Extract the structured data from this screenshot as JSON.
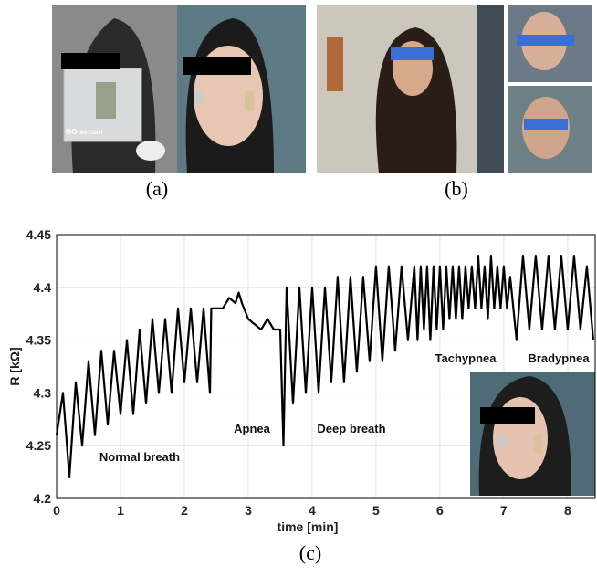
{
  "figure": {
    "panel_labels": [
      "(a)",
      "(b)",
      "(c)"
    ],
    "sensor_label": "GO-sensor"
  },
  "chart_data": {
    "type": "line",
    "xlabel": "time [min]",
    "ylabel": "R [kΩ]",
    "color": "#000000",
    "grid": true,
    "xlim": [
      0,
      8.43
    ],
    "ylim": [
      4.2,
      4.45
    ],
    "xticks": [
      0,
      1,
      2,
      3,
      4,
      5,
      6,
      7,
      8
    ],
    "yticks": [
      4.2,
      4.25,
      4.3,
      4.35,
      4.4,
      4.45
    ],
    "annotations": [
      "Normal breath",
      "Apnea",
      "Deep breath",
      "Tachypnea",
      "Bradypnea"
    ],
    "x": [
      0,
      0.1,
      0.2,
      0.3,
      0.4,
      0.5,
      0.6,
      0.7,
      0.8,
      0.9,
      1.0,
      1.1,
      1.2,
      1.3,
      1.4,
      1.5,
      1.6,
      1.7,
      1.8,
      1.9,
      2.0,
      2.1,
      2.2,
      2.3,
      2.4,
      2.42,
      2.6,
      2.7,
      2.8,
      2.85,
      2.9,
      3.0,
      3.1,
      3.2,
      3.3,
      3.4,
      3.5,
      3.55,
      3.6,
      3.7,
      3.8,
      3.9,
      4.0,
      4.1,
      4.2,
      4.3,
      4.4,
      4.5,
      4.6,
      4.7,
      4.8,
      4.9,
      5.0,
      5.1,
      5.2,
      5.3,
      5.4,
      5.5,
      5.6,
      5.65,
      5.7,
      5.75,
      5.8,
      5.85,
      5.9,
      5.95,
      6.0,
      6.05,
      6.1,
      6.15,
      6.2,
      6.25,
      6.3,
      6.35,
      6.4,
      6.45,
      6.5,
      6.55,
      6.6,
      6.65,
      6.7,
      6.75,
      6.8,
      6.85,
      6.9,
      6.95,
      7.0,
      7.05,
      7.1,
      7.2,
      7.3,
      7.4,
      7.5,
      7.6,
      7.7,
      7.8,
      7.9,
      8.0,
      8.1,
      8.2,
      8.3,
      8.4
    ],
    "values": [
      4.26,
      4.3,
      4.22,
      4.31,
      4.25,
      4.33,
      4.26,
      4.34,
      4.27,
      4.34,
      4.28,
      4.35,
      4.28,
      4.36,
      4.29,
      4.37,
      4.3,
      4.37,
      4.3,
      4.38,
      4.31,
      4.38,
      4.31,
      4.38,
      4.3,
      4.38,
      4.38,
      4.39,
      4.385,
      4.395,
      4.385,
      4.37,
      4.365,
      4.36,
      4.37,
      4.36,
      4.36,
      4.25,
      4.4,
      4.29,
      4.4,
      4.3,
      4.4,
      4.3,
      4.4,
      4.31,
      4.41,
      4.31,
      4.41,
      4.32,
      4.41,
      4.33,
      4.42,
      4.33,
      4.42,
      4.34,
      4.42,
      4.35,
      4.42,
      4.35,
      4.42,
      4.36,
      4.42,
      4.35,
      4.42,
      4.36,
      4.42,
      4.36,
      4.42,
      4.37,
      4.42,
      4.37,
      4.42,
      4.37,
      4.42,
      4.38,
      4.42,
      4.38,
      4.43,
      4.38,
      4.42,
      4.37,
      4.43,
      4.38,
      4.42,
      4.38,
      4.42,
      4.38,
      4.41,
      4.35,
      4.43,
      4.36,
      4.43,
      4.36,
      4.43,
      4.36,
      4.43,
      4.36,
      4.43,
      4.36,
      4.42,
      4.35
    ]
  }
}
